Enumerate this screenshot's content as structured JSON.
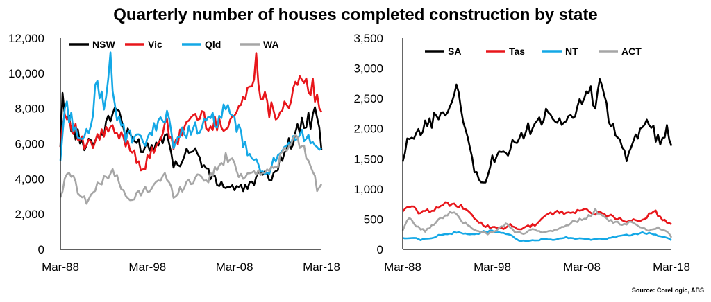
{
  "title": "Quarterly number of houses completed construction by state",
  "source": "Source: CoreLogic, ABS",
  "chart_data": [
    {
      "type": "line",
      "x_ticks": [
        "Mar-88",
        "Mar-98",
        "Mar-08",
        "Mar-18"
      ],
      "x_range": [
        "Mar-88",
        "Mar-18"
      ],
      "y_ticks": [
        "0",
        "2,000",
        "4,000",
        "6,000",
        "8,000",
        "10,000",
        "12,000"
      ],
      "ylim": [
        0,
        12000
      ],
      "legend": "top",
      "grid": false,
      "series": [
        {
          "name": "NSW",
          "color": "#000000",
          "anchors": [
            [
              1988,
              5500
            ],
            [
              1988.25,
              8600
            ],
            [
              1988.75,
              7500
            ],
            [
              1989.5,
              6800
            ],
            [
              1990.5,
              6000
            ],
            [
              1991.5,
              6200
            ],
            [
              1992.5,
              6400
            ],
            [
              1993.5,
              7200
            ],
            [
              1994.5,
              8200
            ],
            [
              1995.5,
              6500
            ],
            [
              1996.5,
              6200
            ],
            [
              1997.5,
              5800
            ],
            [
              1998.5,
              5900
            ],
            [
              1999.5,
              6200
            ],
            [
              2000.25,
              7000
            ],
            [
              2001,
              4600
            ],
            [
              2002,
              5200
            ],
            [
              2003,
              5800
            ],
            [
              2004,
              5200
            ],
            [
              2005,
              4300
            ],
            [
              2006,
              3800
            ],
            [
              2007,
              3600
            ],
            [
              2008,
              3500
            ],
            [
              2009,
              3400
            ],
            [
              2010,
              3800
            ],
            [
              2011,
              4300
            ],
            [
              2012,
              4000
            ],
            [
              2013,
              4800
            ],
            [
              2014,
              5800
            ],
            [
              2015,
              6500
            ],
            [
              2016,
              7200
            ],
            [
              2017,
              7400
            ],
            [
              2017.5,
              7800
            ],
            [
              2018,
              6000
            ]
          ]
        },
        {
          "name": "Vic",
          "color": "#e8161b",
          "anchors": [
            [
              1988,
              6200
            ],
            [
              1988.5,
              7800
            ],
            [
              1989.5,
              7000
            ],
            [
              1990.5,
              6000
            ],
            [
              1991.5,
              5800
            ],
            [
              1992.5,
              6400
            ],
            [
              1993.5,
              6800
            ],
            [
              1994.5,
              6500
            ],
            [
              1995.5,
              6200
            ],
            [
              1996.5,
              5500
            ],
            [
              1997.5,
              4500
            ],
            [
              1998.5,
              5500
            ],
            [
              1999.5,
              6500
            ],
            [
              2000.25,
              7000
            ],
            [
              2001,
              5600
            ],
            [
              2002,
              6800
            ],
            [
              2003,
              7500
            ],
            [
              2004,
              7600
            ],
            [
              2005,
              7200
            ],
            [
              2006,
              7000
            ],
            [
              2007,
              7200
            ],
            [
              2008,
              7600
            ],
            [
              2009,
              8500
            ],
            [
              2010,
              9200
            ],
            [
              2010.5,
              11200
            ],
            [
              2011,
              9000
            ],
            [
              2012,
              8000
            ],
            [
              2013,
              7800
            ],
            [
              2014,
              8400
            ],
            [
              2015,
              9000
            ],
            [
              2016,
              9500
            ],
            [
              2017,
              9200
            ],
            [
              2018,
              7400
            ]
          ]
        },
        {
          "name": "Qld",
          "color": "#14a8e6",
          "anchors": [
            [
              1988,
              5000
            ],
            [
              1988.5,
              8200
            ],
            [
              1989.5,
              7200
            ],
            [
              1990.5,
              6000
            ],
            [
              1991.5,
              6800
            ],
            [
              1992,
              9200
            ],
            [
              1993,
              8500
            ],
            [
              1993.75,
              10500
            ],
            [
              1994.5,
              7600
            ],
            [
              1995.5,
              6400
            ],
            [
              1996.5,
              6300
            ],
            [
              1997.5,
              6000
            ],
            [
              1998.5,
              6600
            ],
            [
              1999.5,
              7200
            ],
            [
              2000.25,
              8000
            ],
            [
              2001,
              6000
            ],
            [
              2002,
              6500
            ],
            [
              2003,
              7000
            ],
            [
              2004,
              6800
            ],
            [
              2005,
              7200
            ],
            [
              2006,
              7400
            ],
            [
              2007,
              7800
            ],
            [
              2008,
              7400
            ],
            [
              2009,
              6000
            ],
            [
              2010,
              5200
            ],
            [
              2011,
              4400
            ],
            [
              2012,
              4600
            ],
            [
              2013,
              5200
            ],
            [
              2014,
              5600
            ],
            [
              2015,
              6200
            ],
            [
              2016,
              6600
            ],
            [
              2017,
              6300
            ],
            [
              2018,
              5400
            ]
          ]
        },
        {
          "name": "WA",
          "color": "#a6a6a6",
          "anchors": [
            [
              1988,
              3000
            ],
            [
              1989,
              4600
            ],
            [
              1990,
              3400
            ],
            [
              1991,
              2700
            ],
            [
              1992,
              3400
            ],
            [
              1993,
              4000
            ],
            [
              1994,
              4600
            ],
            [
              1995,
              3400
            ],
            [
              1996,
              2700
            ],
            [
              1997,
              3200
            ],
            [
              1998,
              3400
            ],
            [
              1999,
              3800
            ],
            [
              2000,
              4200
            ],
            [
              2001,
              3100
            ],
            [
              2002,
              3500
            ],
            [
              2003,
              3900
            ],
            [
              2004,
              4200
            ],
            [
              2005,
              4000
            ],
            [
              2006,
              4600
            ],
            [
              2007,
              5200
            ],
            [
              2008,
              4800
            ],
            [
              2009,
              4000
            ],
            [
              2010,
              4600
            ],
            [
              2011,
              4300
            ],
            [
              2012,
              4400
            ],
            [
              2013,
              5000
            ],
            [
              2014,
              5600
            ],
            [
              2015,
              6400
            ],
            [
              2016,
              5600
            ],
            [
              2017,
              4600
            ],
            [
              2017.5,
              3500
            ],
            [
              2018,
              3600
            ]
          ]
        }
      ]
    },
    {
      "type": "line",
      "x_ticks": [
        "Mar-88",
        "Mar-98",
        "Mar-08",
        "Mar-18"
      ],
      "x_range": [
        "Mar-88",
        "Mar-18"
      ],
      "y_ticks": [
        "0",
        "500",
        "1,000",
        "1,500",
        "2,000",
        "2,500",
        "3,000",
        "3,500"
      ],
      "ylim": [
        0,
        3500
      ],
      "legend": "top",
      "grid": false,
      "series": [
        {
          "name": "SA",
          "color": "#000000",
          "anchors": [
            [
              1988,
              1400
            ],
            [
              1988.5,
              1750
            ],
            [
              1989.5,
              1850
            ],
            [
              1990.5,
              2050
            ],
            [
              1991.5,
              2150
            ],
            [
              1992.5,
              2300
            ],
            [
              1993.5,
              2350
            ],
            [
              1994.25,
              2700
            ],
            [
              1995,
              2000
            ],
            [
              1995.75,
              1450
            ],
            [
              1996.5,
              1150
            ],
            [
              1997.25,
              1100
            ],
            [
              1998,
              1500
            ],
            [
              1999,
              1550
            ],
            [
              2000,
              1650
            ],
            [
              2001,
              1900
            ],
            [
              2002,
              2000
            ],
            [
              2003,
              2100
            ],
            [
              2004,
              2200
            ],
            [
              2005,
              2150
            ],
            [
              2006,
              2050
            ],
            [
              2007,
              2200
            ],
            [
              2008,
              2500
            ],
            [
              2008.75,
              2700
            ],
            [
              2009.5,
              2250
            ],
            [
              2010,
              2850
            ],
            [
              2011,
              2150
            ],
            [
              2012,
              1800
            ],
            [
              2013,
              1500
            ],
            [
              2013.5,
              1650
            ],
            [
              2014.5,
              2000
            ],
            [
              2015.5,
              2100
            ],
            [
              2016.5,
              1800
            ],
            [
              2017.5,
              1950
            ],
            [
              2018,
              1800
            ]
          ]
        },
        {
          "name": "Tas",
          "color": "#e8161b",
          "anchors": [
            [
              1988,
              650
            ],
            [
              1989,
              700
            ],
            [
              1990,
              600
            ],
            [
              1991,
              650
            ],
            [
              1992,
              700
            ],
            [
              1993,
              760
            ],
            [
              1994,
              750
            ],
            [
              1995,
              650
            ],
            [
              1996,
              520
            ],
            [
              1997,
              400
            ],
            [
              1998,
              360
            ],
            [
              1999,
              340
            ],
            [
              2000,
              400
            ],
            [
              2001,
              320
            ],
            [
              2002,
              380
            ],
            [
              2003,
              420
            ],
            [
              2004,
              560
            ],
            [
              2005,
              620
            ],
            [
              2006,
              600
            ],
            [
              2007,
              620
            ],
            [
              2008,
              650
            ],
            [
              2009,
              620
            ],
            [
              2010,
              600
            ],
            [
              2011,
              550
            ],
            [
              2012,
              520
            ],
            [
              2013,
              450
            ],
            [
              2014,
              480
            ],
            [
              2015,
              500
            ],
            [
              2016,
              650
            ],
            [
              2017,
              500
            ],
            [
              2018,
              420
            ]
          ]
        },
        {
          "name": "NT",
          "color": "#14a8e6",
          "anchors": [
            [
              1988,
              180
            ],
            [
              1989,
              200
            ],
            [
              1990,
              160
            ],
            [
              1991,
              180
            ],
            [
              1992,
              230
            ],
            [
              1993,
              260
            ],
            [
              1994,
              280
            ],
            [
              1995,
              260
            ],
            [
              1996,
              240
            ],
            [
              1997,
              300
            ],
            [
              1998,
              300
            ],
            [
              1999,
              260
            ],
            [
              2000,
              250
            ],
            [
              2001,
              150
            ],
            [
              2002,
              140
            ],
            [
              2003,
              150
            ],
            [
              2004,
              180
            ],
            [
              2005,
              150
            ],
            [
              2006,
              200
            ],
            [
              2007,
              180
            ],
            [
              2008,
              180
            ],
            [
              2009,
              160
            ],
            [
              2010,
              170
            ],
            [
              2011,
              180
            ],
            [
              2012,
              220
            ],
            [
              2013,
              240
            ],
            [
              2014,
              250
            ],
            [
              2015,
              280
            ],
            [
              2016,
              240
            ],
            [
              2017,
              220
            ],
            [
              2018,
              150
            ]
          ]
        },
        {
          "name": "ACT",
          "color": "#a6a6a6",
          "anchors": [
            [
              1988,
              300
            ],
            [
              1988.75,
              550
            ],
            [
              1989.5,
              380
            ],
            [
              1990.5,
              300
            ],
            [
              1991.5,
              430
            ],
            [
              1992.5,
              520
            ],
            [
              1993.5,
              640
            ],
            [
              1994.5,
              480
            ],
            [
              1995.5,
              380
            ],
            [
              1996.5,
              300
            ],
            [
              1997.5,
              260
            ],
            [
              1998.5,
              320
            ],
            [
              1999.5,
              420
            ],
            [
              2000.5,
              300
            ],
            [
              2001.5,
              260
            ],
            [
              2002.5,
              330
            ],
            [
              2003.5,
              280
            ],
            [
              2004.5,
              300
            ],
            [
              2005.5,
              330
            ],
            [
              2006.5,
              420
            ],
            [
              2007.5,
              480
            ],
            [
              2008.5,
              520
            ],
            [
              2009.5,
              650
            ],
            [
              2010.5,
              520
            ],
            [
              2011.5,
              460
            ],
            [
              2012.5,
              420
            ],
            [
              2013.5,
              440
            ],
            [
              2014.5,
              380
            ],
            [
              2015.5,
              320
            ],
            [
              2016.5,
              360
            ],
            [
              2017.5,
              300
            ],
            [
              2018,
              200
            ]
          ]
        }
      ]
    }
  ]
}
